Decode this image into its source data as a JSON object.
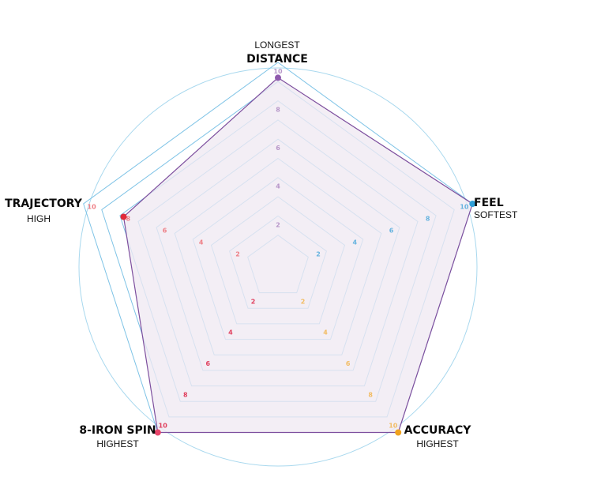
{
  "chart_data": {
    "type": "radar",
    "rlim": [
      0,
      10
    ],
    "ticks": [
      2,
      4,
      6,
      8,
      10
    ],
    "grid": true,
    "axes": [
      {
        "main": "DISTANCE",
        "sub": "LONGEST",
        "sub_position": "above",
        "color": "#8e59ad",
        "tick_color": "#b796c9"
      },
      {
        "main": "FEEL",
        "sub": "SOFTEST",
        "sub_position": "below",
        "color": "#2f9fd8",
        "tick_color": "#66b3df"
      },
      {
        "main": "ACCURACY",
        "sub": "HIGHEST",
        "sub_position": "below",
        "color": "#f0a21e",
        "tick_color": "#f2bc63"
      },
      {
        "main": "8-IRON SPIN",
        "sub": "HIGHEST",
        "sub_position": "below",
        "color": "#e8456b",
        "tick_color": "#e0405e"
      },
      {
        "main": "TRAJECTORY",
        "sub": "HIGH",
        "sub_position": "below",
        "color": "#e02a3a",
        "tick_color": "#ee7f86"
      }
    ],
    "series": [
      {
        "values": [
          9.2,
          10,
          10,
          10,
          7.8
        ]
      }
    ]
  },
  "colors": {
    "grid": "#7ec3e6",
    "outer_circle": "#a8d8ee",
    "series_stroke": "#7d4f9e",
    "series_fill": "#efe9f2"
  }
}
